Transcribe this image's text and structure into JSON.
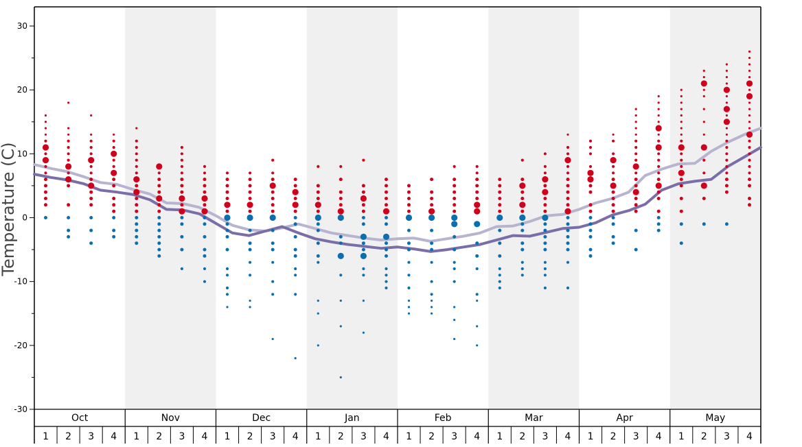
{
  "chart_data": {
    "type": "scatter",
    "ylabel": "Temperature (C)",
    "ylim": [
      -30,
      33
    ],
    "yticks": [
      -30,
      -20,
      -10,
      0,
      10,
      20,
      30
    ],
    "months": [
      "Oct",
      "Nov",
      "Dec",
      "Jan",
      "Feb",
      "Mar",
      "Apr",
      "May"
    ],
    "weeks": [
      "1",
      "2",
      "3",
      "4"
    ],
    "shaded_months": [
      "Nov",
      "Jan",
      "Mar",
      "May"
    ],
    "colors": {
      "warm": "#d0021b",
      "cold": "#0a6fb0",
      "line_upper": "#b8b4d0",
      "line_lower": "#7b6ea8",
      "shade": "#f0f0f0"
    },
    "series": [
      {
        "kind": "upper-line",
        "values": [
          8.3,
          7.7,
          7.2,
          6.4,
          5.5,
          5.2,
          4.4,
          3.7,
          2.3,
          2.2,
          1.6,
          0.3,
          -1.2,
          -1.9,
          -2.1,
          -1.6,
          -1.0,
          -1.7,
          -2.4,
          -2.8,
          -3.2,
          -3.5,
          -3.3,
          -3.2,
          -3.7,
          -3.3,
          -2.9,
          -2.4,
          -1.4,
          -1.3,
          -0.6,
          0.3,
          0.5,
          1.3,
          2.3,
          3.0,
          4.0,
          6.6,
          7.6,
          8.4,
          8.5,
          10.4,
          11.8,
          13.0,
          14.0
        ]
      },
      {
        "kind": "lower-line",
        "values": [
          6.8,
          6.3,
          5.9,
          5.3,
          4.3,
          4.0,
          3.6,
          2.8,
          1.3,
          1.2,
          0.6,
          -0.9,
          -2.4,
          -2.8,
          -2.1,
          -1.4,
          -2.4,
          -3.3,
          -3.8,
          -4.2,
          -4.5,
          -4.8,
          -4.6,
          -4.9,
          -5.3,
          -5.0,
          -4.6,
          -4.2,
          -3.5,
          -2.8,
          -2.9,
          -2.3,
          -1.7,
          -1.5,
          -0.8,
          0.4,
          1.1,
          2.1,
          4.3,
          5.3,
          5.7,
          6.0,
          8.0,
          9.5,
          11.0
        ]
      },
      {
        "kind": "dots",
        "name": "",
        "weekly_temperatures": [
          [
            0,
            2,
            3,
            4,
            5,
            6,
            7,
            8,
            9,
            10,
            11,
            12,
            13,
            14,
            15,
            16
          ],
          [
            -3,
            -2,
            0,
            2,
            5,
            6,
            7,
            8,
            9,
            10,
            11,
            12,
            13,
            14,
            18
          ],
          [
            -4,
            -2,
            0,
            2,
            3,
            4,
            5,
            6,
            7,
            8,
            9,
            10,
            11,
            12,
            13,
            16
          ],
          [
            -3,
            -2,
            0,
            1,
            2,
            3,
            5,
            6,
            7,
            8,
            9,
            10,
            11,
            12,
            13
          ],
          [
            -4,
            -3,
            -2,
            -1,
            0,
            1,
            2,
            3,
            4,
            5,
            6,
            7,
            8,
            9,
            10,
            11,
            12,
            14
          ],
          [
            -6,
            -5,
            -4,
            -3,
            -2,
            -1,
            0,
            1,
            2,
            3,
            4,
            5,
            6,
            7,
            8
          ],
          [
            -8,
            -5,
            -3,
            -1,
            0,
            1,
            2,
            3,
            4,
            5,
            6,
            7,
            8,
            9,
            10,
            11
          ],
          [
            -10,
            -8,
            -6,
            -5,
            -3,
            -1,
            0,
            1,
            2,
            3,
            4,
            5,
            6,
            7,
            8
          ],
          [
            -14,
            -12,
            -11,
            -9,
            -8,
            -5,
            -3,
            -2,
            -1,
            0,
            1,
            2,
            3,
            4,
            5,
            6,
            7
          ],
          [
            -14,
            -13,
            -9,
            -7,
            -5,
            -4,
            -2,
            0,
            1,
            2,
            3,
            4,
            5,
            6,
            7
          ],
          [
            -19,
            -12,
            -10,
            -7,
            -5,
            -4,
            -2,
            0,
            1,
            2,
            3,
            4,
            5,
            6,
            7,
            9
          ],
          [
            -22,
            -12,
            -9,
            -8,
            -6,
            -5,
            -3,
            -1,
            0,
            1,
            2,
            3,
            4,
            5,
            6
          ],
          [
            -20,
            -15,
            -13,
            -7,
            -6,
            -4,
            -2,
            -1,
            0,
            1,
            2,
            3,
            4,
            5,
            8
          ],
          [
            -25,
            -17,
            -13,
            -9,
            -6,
            -4,
            -3,
            0,
            1,
            2,
            3,
            4,
            6,
            8
          ],
          [
            -18,
            -13,
            -9,
            -8,
            -6,
            -5,
            -4,
            -3,
            -1,
            0,
            1,
            2,
            3,
            4,
            5,
            9
          ],
          [
            -11,
            -10,
            -9,
            -8,
            -6,
            -5,
            -4,
            -3,
            -1,
            0,
            1,
            2,
            3,
            4,
            5,
            6
          ],
          [
            -15,
            -14,
            -13,
            -11,
            -9,
            -7,
            -5,
            -4,
            -2,
            0,
            1,
            2,
            3,
            4,
            5
          ],
          [
            -15,
            -14,
            -13,
            -12,
            -10,
            -7,
            -5,
            -4,
            -2,
            0,
            1,
            2,
            3,
            4,
            6
          ],
          [
            -19,
            -16,
            -14,
            -10,
            -8,
            -7,
            -5,
            -3,
            -1,
            0,
            1,
            2,
            3,
            4,
            5,
            6,
            8
          ],
          [
            -20,
            -17,
            -13,
            -12,
            -8,
            -6,
            -4,
            -1,
            1,
            2,
            3,
            4,
            5,
            6,
            7,
            8
          ],
          [
            -11,
            -10,
            -9,
            -8,
            -6,
            -4,
            -2,
            0,
            1,
            2,
            3,
            4,
            5,
            6
          ],
          [
            -9,
            -8,
            -7,
            -5,
            -4,
            -2,
            -1,
            0,
            1,
            2,
            3,
            4,
            5,
            6,
            9
          ],
          [
            -11,
            -9,
            -8,
            -7,
            -5,
            -4,
            -3,
            -2,
            -1,
            0,
            1,
            2,
            3,
            4,
            5,
            6,
            7,
            8,
            10
          ],
          [
            -11,
            -7,
            -5,
            -4,
            -3,
            -2,
            -1,
            0,
            1,
            2,
            3,
            4,
            5,
            6,
            7,
            8,
            9,
            10,
            11,
            13
          ],
          [
            -6,
            -5,
            -3,
            -2,
            -1,
            0,
            1,
            2,
            4,
            5,
            6,
            7,
            8,
            10,
            11,
            12
          ],
          [
            -4,
            -3,
            -1,
            0,
            1,
            2,
            3,
            4,
            5,
            6,
            7,
            8,
            9,
            10,
            12,
            13
          ],
          [
            -5,
            -2,
            1,
            2,
            3,
            4,
            5,
            6,
            7,
            8,
            9,
            10,
            11,
            12,
            13,
            14,
            15,
            16,
            17
          ],
          [
            -2,
            -1,
            0,
            1,
            3,
            4,
            5,
            6,
            7,
            8,
            9,
            10,
            11,
            12,
            13,
            14,
            15,
            16,
            17,
            18,
            19
          ],
          [
            -4,
            -1,
            1,
            3,
            5,
            6,
            7,
            8,
            9,
            10,
            11,
            12,
            13,
            14,
            15,
            16,
            17,
            18,
            19,
            20
          ],
          [
            -1,
            3,
            5,
            7,
            9,
            11,
            13,
            15,
            17,
            19,
            20,
            21,
            22,
            23
          ],
          [
            -1,
            4,
            5,
            6,
            7,
            8,
            9,
            10,
            11,
            12,
            13,
            14,
            15,
            16,
            17,
            18,
            19,
            20,
            21,
            22,
            23,
            24
          ],
          [
            2,
            3,
            5,
            6,
            7,
            8,
            9,
            10,
            11,
            12,
            13,
            14,
            15,
            16,
            17,
            18,
            19,
            20,
            21,
            22,
            23,
            24,
            25,
            26
          ]
        ],
        "emphasized": [
          [
            9,
            11
          ],
          [
            6,
            8
          ],
          [
            9,
            5
          ],
          [
            10,
            7
          ],
          [
            4,
            6
          ],
          [
            3,
            8
          ],
          [
            1,
            3
          ],
          [
            1,
            3
          ],
          [
            0,
            2
          ],
          [
            0,
            2
          ],
          [
            5,
            0
          ],
          [
            4,
            2
          ],
          [
            -3,
            2,
            0
          ],
          [
            0,
            -6,
            1
          ],
          [
            -3,
            -6,
            3
          ],
          [
            -3,
            1
          ],
          [
            -3,
            0
          ],
          [
            0,
            1
          ],
          [
            0,
            -1
          ],
          [
            -1,
            1,
            2
          ],
          [
            0
          ],
          [
            0,
            2,
            5
          ],
          [
            0,
            6,
            4
          ],
          [
            1,
            9
          ],
          [
            6,
            7
          ],
          [
            9,
            5
          ],
          [
            8,
            4
          ],
          [
            5,
            11,
            14
          ],
          [
            11,
            7
          ],
          [
            21,
            11,
            5
          ],
          [
            15,
            17,
            20
          ],
          [
            13,
            19,
            21
          ]
        ]
      }
    ]
  }
}
